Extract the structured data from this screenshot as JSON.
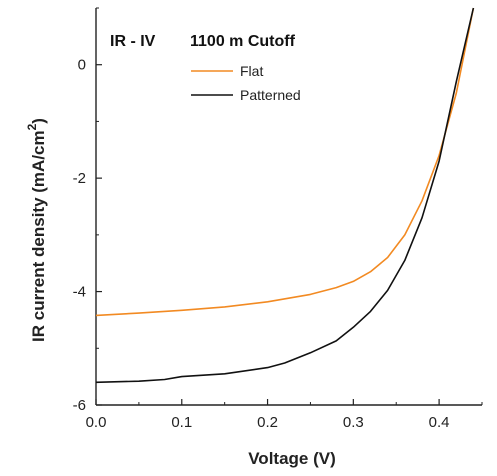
{
  "chart_data": {
    "type": "line",
    "title": "IR - IV",
    "subtitle": "1100 m Cutoff",
    "xlabel": "Voltage (V)",
    "ylabel_main": "IR current density (mA/cm",
    "ylabel_sup": "2",
    "ylabel_close": ")",
    "xlim": [
      0.0,
      0.45
    ],
    "ylim": [
      -6,
      1
    ],
    "x_ticks": [
      0.0,
      0.1,
      0.2,
      0.3,
      0.4
    ],
    "x_tick_labels": [
      "0.0",
      "0.1",
      "0.2",
      "0.3",
      "0.4"
    ],
    "y_ticks": [
      0,
      -2,
      -4,
      -6
    ],
    "y_tick_labels": [
      "0",
      "-2",
      "-4",
      "-6"
    ],
    "grid": false,
    "legend_position": "top-left",
    "series": [
      {
        "name": "Flat",
        "color": "#F28A22",
        "x": [
          0.0,
          0.05,
          0.1,
          0.15,
          0.2,
          0.25,
          0.28,
          0.3,
          0.32,
          0.34,
          0.36,
          0.38,
          0.4,
          0.42,
          0.44
        ],
        "y": [
          -4.42,
          -4.38,
          -4.33,
          -4.27,
          -4.18,
          -4.05,
          -3.93,
          -3.82,
          -3.65,
          -3.4,
          -3.0,
          -2.4,
          -1.6,
          -0.5,
          1.0
        ]
      },
      {
        "name": "Patterned",
        "color": "#111111",
        "x": [
          0.0,
          0.05,
          0.08,
          0.1,
          0.15,
          0.2,
          0.22,
          0.25,
          0.28,
          0.3,
          0.32,
          0.34,
          0.36,
          0.38,
          0.4,
          0.42,
          0.44
        ],
        "y": [
          -5.6,
          -5.58,
          -5.55,
          -5.5,
          -5.45,
          -5.34,
          -5.26,
          -5.08,
          -4.87,
          -4.63,
          -4.35,
          -3.98,
          -3.45,
          -2.7,
          -1.7,
          -0.3,
          1.0
        ]
      }
    ]
  }
}
